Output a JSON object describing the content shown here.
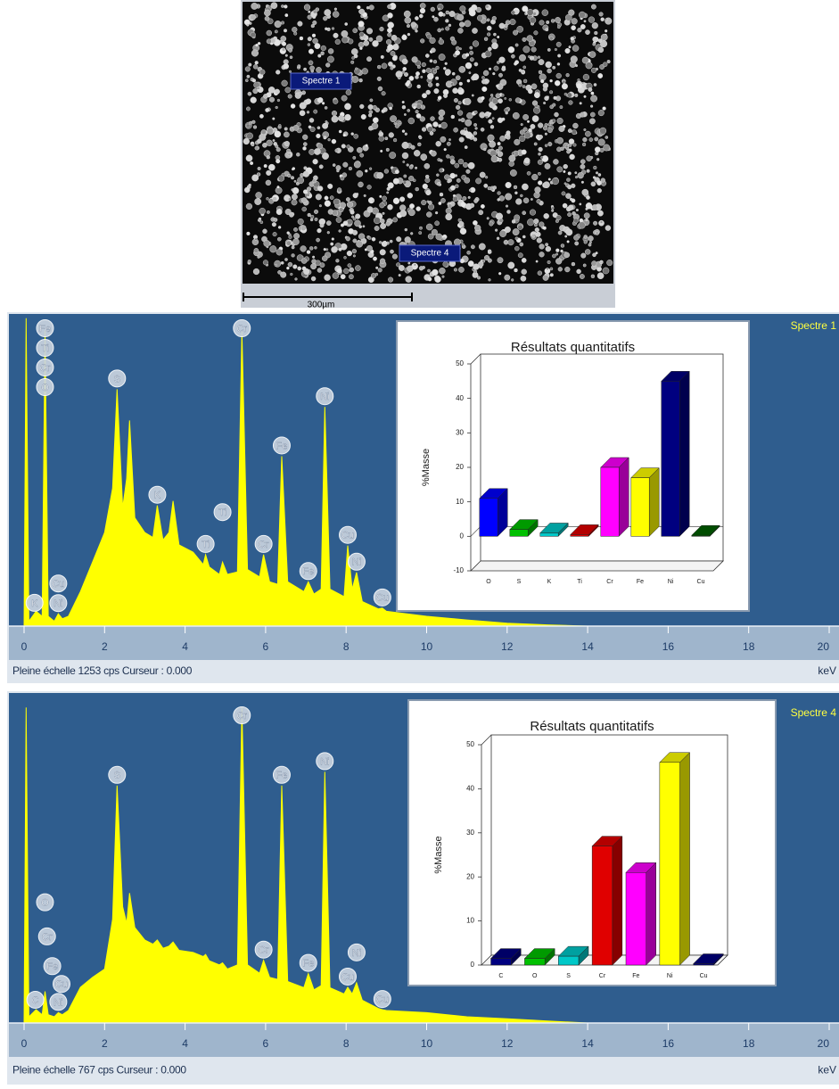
{
  "sem_image": {
    "markers": [
      "Spectre 1",
      "Spectre 4"
    ],
    "scale_bar": "300µm"
  },
  "chart_data": [
    {
      "type": "area",
      "name": "Spectre 1",
      "color": "#ffff00",
      "x": [
        0,
        0.05,
        0.12,
        0.3,
        0.45,
        0.52,
        0.6,
        0.75,
        0.85,
        0.95,
        1.1,
        1.4,
        1.7,
        2.0,
        2.2,
        2.31,
        2.45,
        2.55,
        2.62,
        2.75,
        3.0,
        3.2,
        3.31,
        3.45,
        3.6,
        3.7,
        3.85,
        4.2,
        4.45,
        4.51,
        4.6,
        4.85,
        4.93,
        5.05,
        5.3,
        5.41,
        5.55,
        5.85,
        5.95,
        6.1,
        6.3,
        6.4,
        6.55,
        6.95,
        7.06,
        7.2,
        7.38,
        7.47,
        7.6,
        7.95,
        8.04,
        8.15,
        8.26,
        8.4,
        8.8,
        8.9,
        9.0,
        10,
        11,
        12,
        13,
        14,
        20
      ],
      "values": [
        0,
        1250,
        20,
        60,
        40,
        1200,
        40,
        20,
        50,
        30,
        40,
        140,
        260,
        380,
        560,
        962,
        480,
        600,
        835,
        440,
        380,
        360,
        490,
        350,
        380,
        508,
        330,
        300,
        250,
        290,
        240,
        210,
        260,
        210,
        220,
        1198,
        230,
        200,
        290,
        180,
        170,
        690,
        180,
        140,
        180,
        130,
        150,
        890,
        150,
        120,
        327,
        150,
        218,
        100,
        70,
        73,
        60,
        40,
        25,
        12,
        5,
        0,
        0
      ],
      "xlim": [
        0,
        20
      ],
      "xticks": [
        0,
        2,
        4,
        6,
        8,
        10,
        12,
        14,
        16,
        18,
        20
      ],
      "ylim": [
        0,
        1253
      ],
      "x_label": "keV",
      "footer": "Pleine échelle 1253 cps  Curseur : 0.000",
      "peak_labels": [
        {
          "text": "Fe",
          "x": 0.52
        },
        {
          "text": "Ti",
          "x": 0.52
        },
        {
          "text": "Cr",
          "x": 0.52
        },
        {
          "text": "O",
          "x": 0.52
        },
        {
          "text": "K",
          "x": 0.26
        },
        {
          "text": "Ni",
          "x": 0.85
        },
        {
          "text": "Cu",
          "x": 0.85
        },
        {
          "text": "S",
          "x": 2.31
        },
        {
          "text": "K",
          "x": 3.31
        },
        {
          "text": "Ti",
          "x": 4.51
        },
        {
          "text": "Ti",
          "x": 4.93
        },
        {
          "text": "Cr",
          "x": 5.41
        },
        {
          "text": "Cr",
          "x": 5.95
        },
        {
          "text": "Fe",
          "x": 6.4
        },
        {
          "text": "Fe",
          "x": 7.06
        },
        {
          "text": "Ni",
          "x": 7.47
        },
        {
          "text": "Cu",
          "x": 8.04
        },
        {
          "text": "Ni",
          "x": 8.26
        },
        {
          "text": "Cu",
          "x": 8.9
        }
      ]
    },
    {
      "type": "bar3d",
      "title": "Résultats quantitatifs",
      "y_label": "%Masse",
      "categories": [
        "O",
        "S",
        "K",
        "Ti",
        "Cr",
        "Fe",
        "Ni",
        "Cu"
      ],
      "values": [
        11,
        2,
        1,
        0.5,
        20,
        17,
        45,
        0.3
      ],
      "colors": [
        "#0000ff",
        "#00c000",
        "#00c8c8",
        "#e00000",
        "#ff00ff",
        "#ffff00",
        "#000080",
        "#006000"
      ],
      "ylim": [
        -10,
        50
      ],
      "yticks": [
        -10,
        0,
        10,
        20,
        30,
        40,
        50
      ]
    },
    {
      "type": "area",
      "name": "Spectre 4",
      "color": "#ffff00",
      "x": [
        0,
        0.05,
        0.12,
        0.3,
        0.45,
        0.52,
        0.6,
        0.75,
        0.85,
        0.95,
        1.1,
        1.4,
        1.7,
        2.0,
        2.2,
        2.31,
        2.45,
        2.55,
        2.62,
        2.75,
        3.0,
        3.2,
        3.31,
        3.45,
        3.6,
        3.7,
        3.85,
        4.2,
        4.45,
        4.51,
        4.6,
        4.85,
        4.93,
        5.05,
        5.3,
        5.41,
        5.55,
        5.85,
        5.95,
        6.1,
        6.3,
        6.4,
        6.55,
        6.95,
        7.06,
        7.2,
        7.38,
        7.47,
        7.6,
        7.95,
        8.04,
        8.15,
        8.26,
        8.4,
        8.8,
        8.9,
        9.0,
        10,
        11,
        12,
        13,
        14,
        20
      ],
      "values": [
        0,
        760,
        15,
        32,
        20,
        76,
        20,
        15,
        25,
        20,
        30,
        86,
        110,
        130,
        250,
        572,
        280,
        240,
        313,
        230,
        200,
        190,
        200,
        180,
        185,
        195,
        175,
        170,
        160,
        165,
        150,
        140,
        145,
        130,
        140,
        760,
        140,
        120,
        151,
        110,
        105,
        572,
        100,
        85,
        119,
        80,
        90,
        605,
        85,
        70,
        86,
        70,
        97,
        55,
        35,
        32,
        30,
        25,
        15,
        10,
        5,
        0,
        0
      ],
      "xlim": [
        0,
        20
      ],
      "xticks": [
        0,
        2,
        4,
        6,
        8,
        10,
        12,
        14,
        16,
        18,
        20
      ],
      "ylim": [
        0,
        767
      ],
      "x_label": "keV",
      "footer": "Pleine échelle 767 cps  Curseur : 0.000",
      "peak_labels": [
        {
          "text": "C",
          "x": 0.28
        },
        {
          "text": "Ni",
          "x": 0.85
        },
        {
          "text": "Fe",
          "x": 0.7
        },
        {
          "text": "Cu",
          "x": 0.93
        },
        {
          "text": "Cr",
          "x": 0.57
        },
        {
          "text": "O",
          "x": 0.52
        },
        {
          "text": "S",
          "x": 2.31
        },
        {
          "text": "Cr",
          "x": 5.41
        },
        {
          "text": "Cr",
          "x": 5.95
        },
        {
          "text": "Fe",
          "x": 6.4
        },
        {
          "text": "Fe",
          "x": 7.06
        },
        {
          "text": "Ni",
          "x": 7.47
        },
        {
          "text": "Cu",
          "x": 8.04
        },
        {
          "text": "Ni",
          "x": 8.26
        },
        {
          "text": "Cu",
          "x": 8.9
        }
      ]
    },
    {
      "type": "bar3d",
      "title": "Résultats quantitatifs",
      "y_label": "%Masse",
      "categories": [
        "C",
        "O",
        "S",
        "Cr",
        "Fe",
        "Ni",
        "Cu"
      ],
      "values": [
        1.5,
        1.5,
        2,
        27,
        21,
        46,
        0.3
      ],
      "colors": [
        "#000080",
        "#00c000",
        "#00c8c8",
        "#e00000",
        "#ff00ff",
        "#ffff00",
        "#000080"
      ],
      "ylim": [
        0,
        50
      ],
      "yticks": [
        0,
        10,
        20,
        30,
        40,
        50
      ]
    }
  ]
}
